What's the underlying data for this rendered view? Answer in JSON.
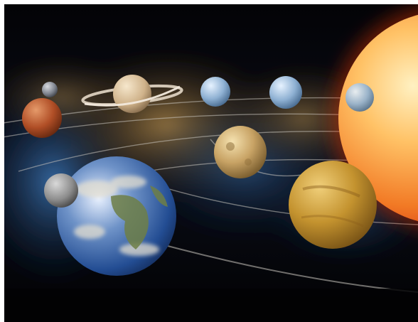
{
  "image": {
    "subject": "solar-system-illustration",
    "objects": [
      {
        "name": "sun",
        "icon": "sun-icon"
      },
      {
        "name": "mercury",
        "icon": "planet-icon"
      },
      {
        "name": "venus",
        "icon": "planet-icon"
      },
      {
        "name": "earth",
        "icon": "planet-icon"
      },
      {
        "name": "moon",
        "icon": "moon-icon"
      },
      {
        "name": "mars",
        "icon": "planet-icon"
      },
      {
        "name": "jupiter",
        "icon": "planet-icon"
      },
      {
        "name": "saturn",
        "icon": "ringed-planet-icon"
      },
      {
        "name": "uranus",
        "icon": "planet-icon"
      },
      {
        "name": "neptune",
        "icon": "planet-icon"
      },
      {
        "name": "pluto",
        "icon": "planet-icon"
      }
    ],
    "colors": {
      "space": "#05060b",
      "nebula_blue": "#2f5f9a",
      "nebula_gold": "#9c7a44",
      "sun_core": "#ffd08a",
      "sun_edge": "#e8451a",
      "earth_ocean": "#2d5aa8",
      "venus": "#c79a3e",
      "mars": "#b5562e"
    }
  }
}
